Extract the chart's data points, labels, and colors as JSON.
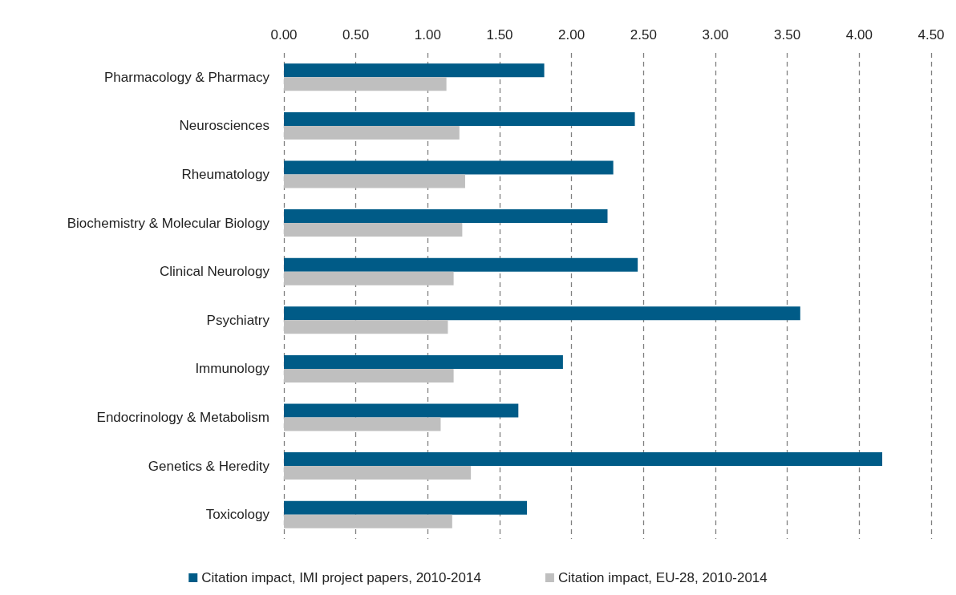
{
  "chart_data": {
    "type": "bar",
    "orientation": "horizontal",
    "categories": [
      "Pharmacology & Pharmacy",
      "Neurosciences",
      "Rheumatology",
      "Biochemistry & Molecular Biology",
      "Clinical Neurology",
      "Psychiatry",
      "Immunology",
      "Endocrinology & Metabolism",
      "Genetics & Heredity",
      "Toxicology"
    ],
    "series": [
      {
        "name": "Citation impact, IMI project papers, 2010-2014",
        "color": "#005b87",
        "values": [
          1.81,
          2.44,
          2.29,
          2.25,
          2.46,
          3.59,
          1.94,
          1.63,
          4.16,
          1.69
        ]
      },
      {
        "name": "Citation impact, EU-28, 2010-2014",
        "color": "#bfbfbf",
        "values": [
          1.13,
          1.22,
          1.26,
          1.24,
          1.18,
          1.14,
          1.18,
          1.09,
          1.3,
          1.17
        ]
      }
    ],
    "xlim": [
      0,
      4.5
    ],
    "xticks": [
      {
        "value": 0,
        "label": "0.00"
      },
      {
        "value": 0.5,
        "label": "0.50"
      },
      {
        "value": 1,
        "label": "1.00"
      },
      {
        "value": 1.5,
        "label": "1.50"
      },
      {
        "value": 2,
        "label": "2.00"
      },
      {
        "value": 2.5,
        "label": "2.50"
      },
      {
        "value": 3,
        "label": "3.00"
      },
      {
        "value": 3.5,
        "label": "3.50"
      },
      {
        "value": 4,
        "label": "4.00"
      },
      {
        "value": 4.5,
        "label": "4.50"
      }
    ],
    "grid": "x",
    "legend": "bottom"
  }
}
